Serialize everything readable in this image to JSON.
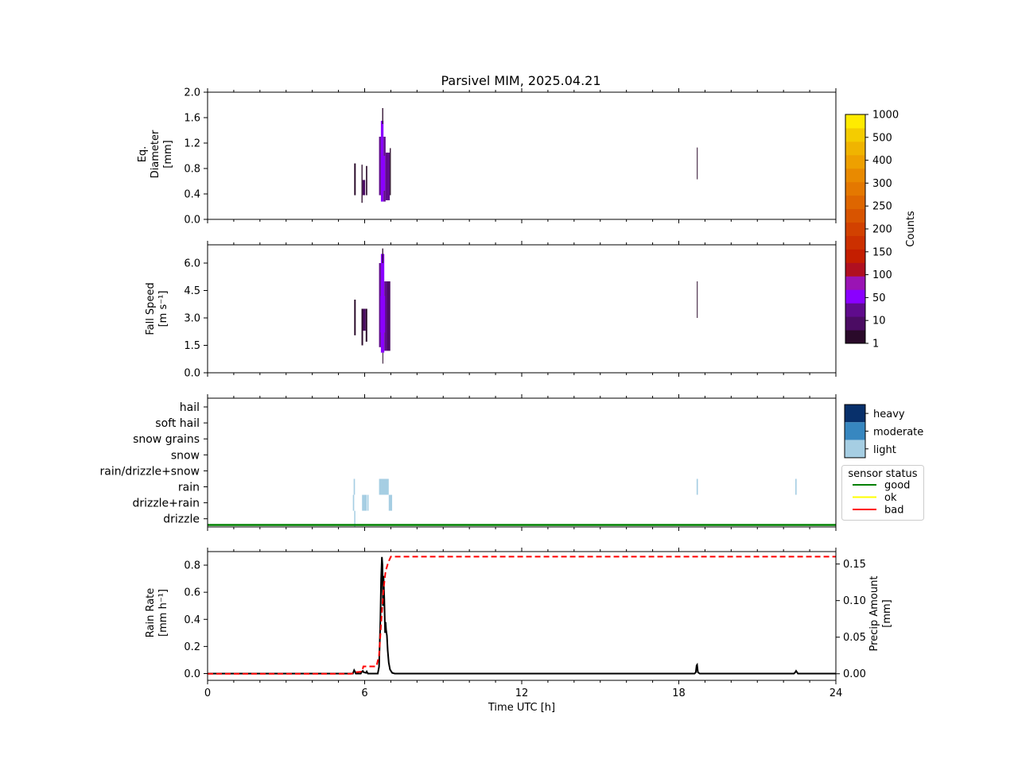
{
  "title": "Parsivel MIM, 2025.04.21",
  "colors": {
    "counts_levels": [
      "#2a0a2a",
      "#4b0c63",
      "#5f0b8c",
      "#8a00ff",
      "#9a14b4",
      "#b01020",
      "#c41e00",
      "#cc3000",
      "#d24100",
      "#d85400",
      "#de6600",
      "#e47800",
      "#e98a00",
      "#eea000",
      "#f0b400",
      "#f4cc00",
      "#ffeb00"
    ],
    "intensity": {
      "heavy": "#08306b",
      "moderate": "#3787c0",
      "light": "#a6cee3"
    },
    "status": {
      "good": "#008000",
      "ok": "#ffff00",
      "bad": "#ff0000"
    },
    "rain_rate_line": "#000000",
    "precip_line": "#ff0000"
  },
  "x_axis": {
    "label": "Time UTC [h]",
    "range": [
      0,
      24
    ],
    "ticks": [
      0,
      6,
      12,
      18,
      24
    ],
    "tick_labels": [
      "0",
      "6",
      "12",
      "18",
      "24"
    ]
  },
  "panel_diameter": {
    "ylabel_lines": [
      "Eq.",
      "Diameter",
      "[mm]"
    ],
    "ylim": [
      0,
      2.0
    ],
    "yticks": [
      0.0,
      0.4,
      0.8,
      1.2,
      1.6,
      2.0
    ],
    "ytick_labels": [
      "0.0",
      "0.4",
      "0.8",
      "1.2",
      "1.6",
      "2.0"
    ]
  },
  "panel_speed": {
    "ylabel_lines": [
      "Fall Speed",
      "[m s⁻¹]"
    ],
    "ylim": [
      0,
      7.0
    ],
    "yticks": [
      0.0,
      1.5,
      3.0,
      4.5,
      6.0
    ],
    "ytick_labels": [
      "0.0",
      "1.5",
      "3.0",
      "4.5",
      "6.0"
    ]
  },
  "counts_colorbar": {
    "label": "Counts",
    "tick_labels": [
      "1",
      "10",
      "50",
      "100",
      "150",
      "200",
      "250",
      "300",
      "400",
      "500",
      "1000"
    ]
  },
  "panel_type": {
    "categories": [
      "hail",
      "soft hail",
      "snow grains",
      "snow",
      "rain/drizzle+snow",
      "rain",
      "drizzle+rain",
      "drizzle"
    ],
    "intensity_legend": [
      "heavy",
      "moderate",
      "light"
    ],
    "status_legend_title": "sensor status",
    "status_legend": [
      "good",
      "ok",
      "bad"
    ]
  },
  "panel_rain": {
    "ylabel_lines": [
      "Rain Rate",
      "[mm h⁻¹]"
    ],
    "ylim": [
      -0.05,
      0.9
    ],
    "yticks": [
      0.0,
      0.2,
      0.4,
      0.6,
      0.8
    ],
    "ytick_labels": [
      "0.0",
      "0.2",
      "0.4",
      "0.6",
      "0.8"
    ],
    "y2label_lines": [
      "Precip Amount",
      "[mm]"
    ],
    "y2lim": [
      -0.009,
      0.167
    ],
    "y2ticks": [
      0.0,
      0.05,
      0.1,
      0.15
    ],
    "y2tick_labels": [
      "0.00",
      "0.05",
      "0.10",
      "0.15"
    ]
  },
  "chart_data": [
    {
      "type": "heatmap",
      "name": "diameter-time",
      "xlabel": "Time UTC [h]",
      "ylabel": "Eq. Diameter [mm]",
      "xlim": [
        0,
        24
      ],
      "ylim": [
        0,
        2.0
      ],
      "cells": [
        {
          "t0": 5.6,
          "t1": 5.66,
          "y0": 0.38,
          "y1": 0.88,
          "c": 0
        },
        {
          "t0": 5.88,
          "t1": 5.92,
          "y0": 0.26,
          "y1": 0.86,
          "c": 0
        },
        {
          "t0": 5.92,
          "t1": 6.02,
          "y0": 0.38,
          "y1": 0.62,
          "c": 1
        },
        {
          "t0": 6.05,
          "t1": 6.1,
          "y0": 0.38,
          "y1": 0.84,
          "c": 0
        },
        {
          "t0": 6.55,
          "t1": 6.62,
          "y0": 0.38,
          "y1": 1.3,
          "c": 2
        },
        {
          "t0": 6.62,
          "t1": 6.72,
          "y0": 0.28,
          "y1": 1.55,
          "c": 3
        },
        {
          "t0": 6.72,
          "t1": 6.8,
          "y0": 0.28,
          "y1": 1.3,
          "c": 2
        },
        {
          "t0": 6.8,
          "t1": 6.96,
          "y0": 0.3,
          "y1": 1.05,
          "c": 2
        },
        {
          "t0": 6.67,
          "t1": 6.71,
          "y0": 1.5,
          "y1": 1.75,
          "c": 0
        },
        {
          "t0": 6.64,
          "t1": 6.78,
          "y0": 0.45,
          "y1": 1.0,
          "c": 3
        },
        {
          "t0": 6.96,
          "t1": 7.0,
          "y0": 0.38,
          "y1": 1.12,
          "c": 0
        },
        {
          "t0": 18.69,
          "t1": 18.71,
          "y0": 0.63,
          "y1": 1.13,
          "c": 0
        }
      ]
    },
    {
      "type": "heatmap",
      "name": "speed-time",
      "xlabel": "Time UTC [h]",
      "ylabel": "Fall Speed [m s⁻¹]",
      "xlim": [
        0,
        24
      ],
      "ylim": [
        0,
        7.0
      ],
      "cells": [
        {
          "t0": 5.6,
          "t1": 5.66,
          "y0": 2.05,
          "y1": 4.0,
          "c": 0
        },
        {
          "t0": 5.88,
          "t1": 5.94,
          "y0": 1.5,
          "y1": 3.5,
          "c": 0
        },
        {
          "t0": 5.94,
          "t1": 6.04,
          "y0": 2.3,
          "y1": 3.5,
          "c": 1
        },
        {
          "t0": 6.04,
          "t1": 6.1,
          "y0": 1.7,
          "y1": 3.5,
          "c": 0
        },
        {
          "t0": 6.55,
          "t1": 6.62,
          "y0": 1.4,
          "y1": 6.0,
          "c": 2
        },
        {
          "t0": 6.62,
          "t1": 6.75,
          "y0": 1.1,
          "y1": 6.5,
          "c": 3
        },
        {
          "t0": 6.75,
          "t1": 6.85,
          "y0": 1.2,
          "y1": 5.0,
          "c": 2
        },
        {
          "t0": 6.85,
          "t1": 6.98,
          "y0": 1.2,
          "y1": 5.0,
          "c": 1
        },
        {
          "t0": 6.67,
          "t1": 6.71,
          "y0": 6.0,
          "y1": 6.8,
          "c": 0
        },
        {
          "t0": 6.6,
          "t1": 6.78,
          "y0": 2.2,
          "y1": 4.2,
          "c": 3
        },
        {
          "t0": 6.68,
          "t1": 6.7,
          "y0": 0.5,
          "y1": 1.1,
          "c": 0
        },
        {
          "t0": 18.69,
          "t1": 18.71,
          "y0": 3.0,
          "y1": 5.0,
          "c": 0
        }
      ]
    },
    {
      "type": "heatmap",
      "name": "precip-type",
      "xlabel": "Time UTC [h]",
      "xlim": [
        0,
        24
      ],
      "categories": [
        "hail",
        "soft hail",
        "snow grains",
        "snow",
        "rain/drizzle+snow",
        "rain",
        "drizzle+rain",
        "drizzle"
      ],
      "cells": [
        {
          "t0": 5.58,
          "t1": 5.63,
          "cat": "rain",
          "intensity": "light"
        },
        {
          "t0": 5.55,
          "t1": 5.6,
          "cat": "drizzle+rain",
          "intensity": "light"
        },
        {
          "t0": 5.6,
          "t1": 5.64,
          "cat": "drizzle",
          "intensity": "light"
        },
        {
          "t0": 5.9,
          "t1": 6.08,
          "cat": "drizzle+rain",
          "intensity": "light"
        },
        {
          "t0": 6.1,
          "t1": 6.15,
          "cat": "drizzle+rain",
          "intensity": "light"
        },
        {
          "t0": 6.55,
          "t1": 6.92,
          "cat": "rain",
          "intensity": "light"
        },
        {
          "t0": 6.92,
          "t1": 7.05,
          "cat": "drizzle+rain",
          "intensity": "light"
        },
        {
          "t0": 18.68,
          "t1": 18.73,
          "cat": "rain",
          "intensity": "light"
        },
        {
          "t0": 22.45,
          "t1": 22.5,
          "cat": "rain",
          "intensity": "light"
        }
      ],
      "status_series": [
        {
          "name": "good",
          "t": [
            0,
            24
          ]
        }
      ]
    },
    {
      "type": "line",
      "name": "rain-rate",
      "xlabel": "Time UTC [h]",
      "ylabel": "Rain Rate [mm h⁻¹]",
      "y2label": "Precip Amount [mm]",
      "xlim": [
        0,
        24
      ],
      "ylim": [
        -0.05,
        0.9
      ],
      "series": [
        {
          "axis": "left",
          "style": "solid",
          "x": [
            0,
            5.55,
            5.6,
            5.63,
            5.66,
            5.7,
            5.85,
            5.9,
            5.93,
            5.96,
            6.05,
            6.08,
            6.12,
            6.5,
            6.55,
            6.6,
            6.63,
            6.66,
            6.68,
            6.7,
            6.72,
            6.75,
            6.78,
            6.8,
            6.82,
            6.85,
            6.88,
            6.92,
            6.97,
            7.05,
            7.15,
            18.6,
            18.65,
            18.68,
            18.7,
            18.73,
            18.8,
            22.4,
            22.45,
            22.48,
            22.55,
            24
          ],
          "y": [
            0,
            0,
            0.025,
            0.015,
            0,
            0,
            0,
            0.015,
            0.02,
            0.01,
            0.005,
            0.015,
            0,
            0,
            0.05,
            0.4,
            0.7,
            0.86,
            0.8,
            0.5,
            0.72,
            0.55,
            0.3,
            0.38,
            0.32,
            0.28,
            0.17,
            0.08,
            0.03,
            0.005,
            0,
            0,
            0.01,
            0.06,
            0.065,
            0.01,
            0,
            0,
            0.01,
            0.02,
            0,
            0
          ]
        },
        {
          "axis": "right",
          "style": "dashed",
          "x": [
            0,
            5.5,
            5.6,
            5.9,
            5.95,
            6.0,
            6.45,
            6.55,
            6.65,
            6.72,
            6.8,
            6.9,
            7.0,
            24
          ],
          "y": [
            0,
            0,
            0.002,
            0.003,
            0.01,
            0.01,
            0.01,
            0.025,
            0.08,
            0.115,
            0.14,
            0.152,
            0.16,
            0.16
          ]
        }
      ]
    }
  ]
}
